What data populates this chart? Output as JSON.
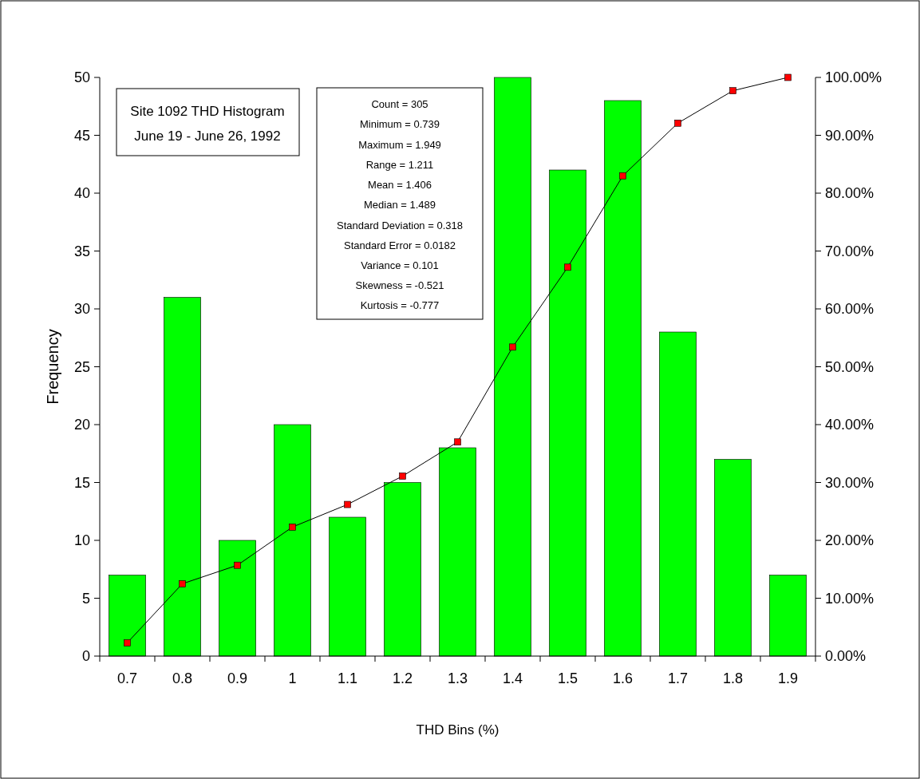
{
  "chart_data": {
    "type": "bar",
    "title": "Site 1092 THD Histogram",
    "subtitle": "June 19 - June 26, 1992",
    "xlabel": "THD Bins (%)",
    "ylabel": "Frequency",
    "categories": [
      "0.7",
      "0.8",
      "0.9",
      "1",
      "1.1",
      "1.2",
      "1.3",
      "1.4",
      "1.5",
      "1.6",
      "1.7",
      "1.8",
      "1.9"
    ],
    "series": [
      {
        "color": "#00ff00",
        "values": [
          7,
          31,
          10,
          20,
          12,
          15,
          18,
          50,
          42,
          48,
          28,
          17,
          7
        ]
      },
      {
        "type": "line",
        "axis": "y2",
        "color": "#000000",
        "values": [
          2.3,
          12.5,
          15.7,
          22.3,
          26.2,
          31.1,
          37.0,
          53.4,
          67.2,
          83.0,
          92.1,
          97.7,
          100
        ]
      }
    ],
    "ylim": [
      0,
      50
    ],
    "yticks": [
      0,
      5,
      10,
      15,
      20,
      25,
      30,
      35,
      40,
      45,
      50
    ],
    "y2lim": [
      0,
      100
    ],
    "y2ticks": [
      {
        "value": 0,
        "label": "0.00%"
      },
      {
        "value": 10,
        "label": "10.00%"
      },
      {
        "value": 20,
        "label": "20.00%"
      },
      {
        "value": 30,
        "label": "30.00%"
      },
      {
        "value": 40,
        "label": "40.00%"
      },
      {
        "value": 50,
        "label": "50.00%"
      },
      {
        "value": 60,
        "label": "60.00%"
      },
      {
        "value": 70,
        "label": "70.00%"
      },
      {
        "value": 80,
        "label": "80.00%"
      },
      {
        "value": 90,
        "label": "90.00%"
      },
      {
        "value": 100,
        "label": "100.00%"
      }
    ],
    "annotations": [
      "Count = 305",
      "Minimum = 0.739",
      "Maximum = 1.949",
      "Range = 1.211",
      "Mean = 1.406",
      "Median = 1.489",
      "Standard Deviation = 0.318",
      "Standard Error = 0.0182",
      "Variance = 0.101",
      "Skewness = -0.521",
      "Kurtosis = -0.777"
    ],
    "marker": "square"
  }
}
